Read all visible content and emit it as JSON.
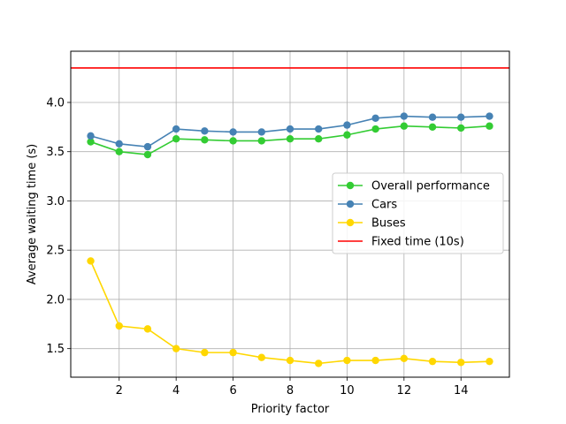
{
  "chart_data": {
    "type": "line",
    "title": "",
    "xlabel": "Priority factor",
    "ylabel": "Average waiting time (s)",
    "xlim": [
      0.3,
      15.7
    ],
    "ylim": [
      1.21,
      4.52
    ],
    "xticks": [
      2,
      4,
      6,
      8,
      10,
      12,
      14
    ],
    "yticks": [
      1.5,
      2.0,
      2.5,
      3.0,
      3.5,
      4.0
    ],
    "ytick_labels": [
      "1.5",
      "2.0",
      "2.5",
      "3.0",
      "3.5",
      "4.0"
    ],
    "grid": true,
    "legend_position": "center-right",
    "x": [
      1,
      2,
      3,
      4,
      5,
      6,
      7,
      8,
      9,
      10,
      11,
      12,
      13,
      14,
      15
    ],
    "series": [
      {
        "name": "Overall performance",
        "color": "#33cc33",
        "marker": "circle",
        "values": [
          3.6,
          3.5,
          3.47,
          3.63,
          3.62,
          3.61,
          3.61,
          3.63,
          3.63,
          3.67,
          3.73,
          3.76,
          3.75,
          3.74,
          3.76
        ]
      },
      {
        "name": "Cars",
        "color": "#4682b4",
        "marker": "circle",
        "values": [
          3.66,
          3.58,
          3.55,
          3.73,
          3.71,
          3.7,
          3.7,
          3.73,
          3.73,
          3.77,
          3.84,
          3.86,
          3.85,
          3.85,
          3.86
        ]
      },
      {
        "name": "Buses",
        "color": "#ffd700",
        "marker": "circle",
        "values": [
          2.39,
          1.73,
          1.7,
          1.5,
          1.46,
          1.46,
          1.41,
          1.38,
          1.35,
          1.38,
          1.38,
          1.4,
          1.37,
          1.36,
          1.37
        ]
      }
    ],
    "reference_lines": [
      {
        "name": "Fixed time (10s)",
        "color": "#ff0000",
        "y": 4.35
      }
    ]
  }
}
